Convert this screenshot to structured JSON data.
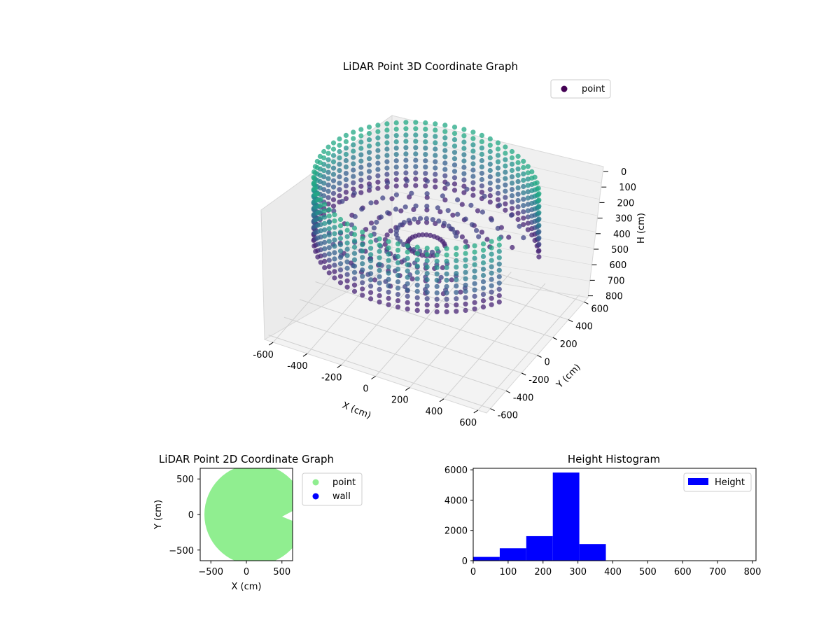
{
  "chart_data": [
    {
      "type": "scatter",
      "dimensions": 3,
      "title": "LiDAR Point 3D Coordinate Graph",
      "xlabel": "X (cm)",
      "ylabel": "Y (cm)",
      "zlabel": "H (cm)",
      "xlim": [
        -650,
        650
      ],
      "ylim": [
        -650,
        650
      ],
      "zlim": [
        800,
        0
      ],
      "x_ticks": [
        "-600",
        "-400",
        "-200",
        "0",
        "200",
        "400",
        "600"
      ],
      "y_ticks": [
        "-600",
        "-400",
        "-200",
        "0",
        "200",
        "400",
        "600"
      ],
      "z_ticks": [
        "0",
        "100",
        "200",
        "300",
        "400",
        "500",
        "600",
        "700",
        "800"
      ],
      "z_inverted": true,
      "colormap": "viridis",
      "legend": [
        "point"
      ],
      "legend_position": "upper-right",
      "grid": true,
      "series": [
        {
          "name": "point",
          "description_shape": "cylindrical wall of radius ~600 with a wedge opening toward +X, heights roughly 0-400",
          "sample_points": [
            {
              "x": 600,
              "y": 0,
              "h": 300
            },
            {
              "x": 424,
              "y": 424,
              "h": 300
            },
            {
              "x": 0,
              "y": 600,
              "h": 300
            },
            {
              "x": -424,
              "y": 424,
              "h": 300
            },
            {
              "x": -600,
              "y": 0,
              "h": 300
            },
            {
              "x": -424,
              "y": -424,
              "h": 300
            },
            {
              "x": 0,
              "y": -600,
              "h": 300
            },
            {
              "x": 424,
              "y": -424,
              "h": 300
            }
          ]
        }
      ]
    },
    {
      "type": "scatter",
      "title": "LiDAR Point 2D Coordinate Graph",
      "xlabel": "X (cm)",
      "ylabel": "Y (cm)",
      "xlim": [
        -650,
        650
      ],
      "ylim": [
        -650,
        650
      ],
      "x_ticks": [
        "−500",
        "0",
        "500"
      ],
      "y_ticks": [
        "500",
        "0",
        "−500"
      ],
      "legend": [
        "point",
        "wall"
      ],
      "legend_position": "outside-right",
      "series": [
        {
          "name": "point",
          "color": "#90ee90",
          "shape": "filled disc radius ~600 centered near (100, 0) with a notch at +X"
        },
        {
          "name": "wall",
          "color": "#0000ff"
        }
      ]
    },
    {
      "type": "bar",
      "title": "Height Histogram",
      "xlim": [
        0,
        810
      ],
      "ylim": [
        0,
        6100
      ],
      "x_ticks": [
        "0",
        "100",
        "200",
        "300",
        "400",
        "500",
        "600",
        "700",
        "800"
      ],
      "y_ticks": [
        "0",
        "2000",
        "4000",
        "6000"
      ],
      "legend": [
        "Height"
      ],
      "legend_position": "upper-right",
      "color": "#0000ff",
      "bins": [
        {
          "start": 0,
          "end": 76,
          "count": 250
        },
        {
          "start": 76,
          "end": 152,
          "count": 820
        },
        {
          "start": 152,
          "end": 228,
          "count": 1620
        },
        {
          "start": 228,
          "end": 304,
          "count": 5820
        },
        {
          "start": 304,
          "end": 380,
          "count": 1100
        }
      ]
    }
  ]
}
